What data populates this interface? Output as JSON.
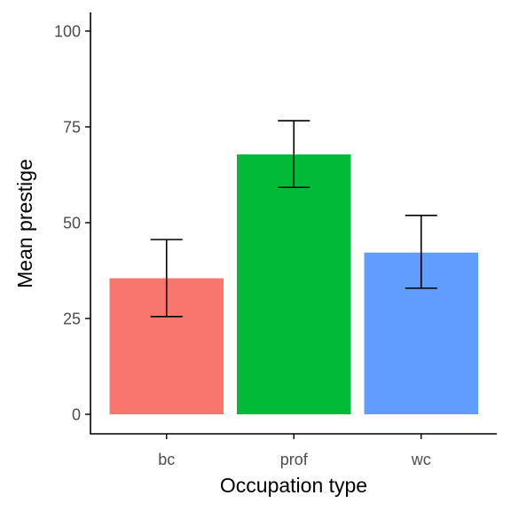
{
  "chart_data": {
    "type": "bar",
    "categories": [
      "bc",
      "prof",
      "wc"
    ],
    "values": [
      35.5,
      67.8,
      42.2
    ],
    "error_low": [
      25.5,
      59.2,
      32.9
    ],
    "error_high": [
      45.6,
      76.6,
      51.9
    ],
    "colors": [
      "#F8766D",
      "#00BA38",
      "#619CFF"
    ],
    "xlabel": "Occupation type",
    "ylabel": "Mean prestige",
    "ylim": [
      0,
      100
    ],
    "yticks": [
      0,
      25,
      50,
      75,
      100
    ],
    "grid": false,
    "legend": "none"
  }
}
